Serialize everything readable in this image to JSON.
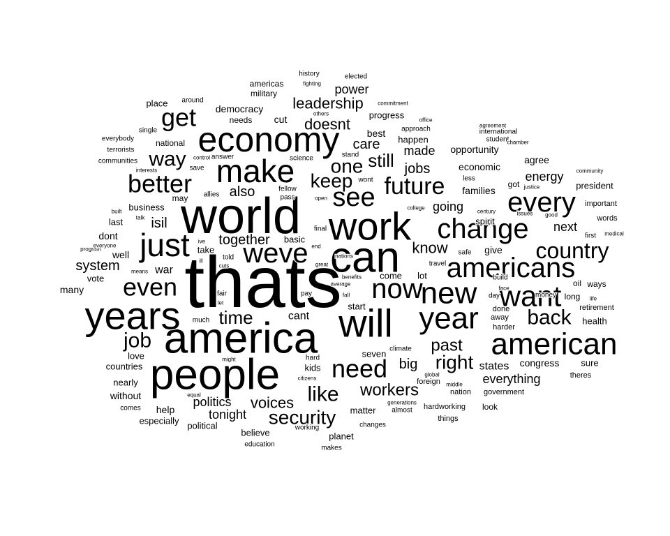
{
  "text_color": "#000000",
  "background_color": "#ffffff",
  "words": [
    {
      "text": "thats",
      "size": 5
    },
    {
      "text": "world",
      "size": 5
    },
    {
      "text": "america",
      "size": 5
    },
    {
      "text": "people",
      "size": 5
    },
    {
      "text": "can",
      "size": 4
    },
    {
      "text": "work",
      "size": 4
    },
    {
      "text": "will",
      "size": 4
    },
    {
      "text": "years",
      "size": 4
    },
    {
      "text": "economy",
      "size": 4
    },
    {
      "text": "make",
      "size": 4
    },
    {
      "text": "just",
      "size": 4
    },
    {
      "text": "weve",
      "size": 4
    },
    {
      "text": "year",
      "size": 4
    },
    {
      "text": "american",
      "size": 4
    },
    {
      "text": "new",
      "size": 4
    },
    {
      "text": "change",
      "size": 4
    },
    {
      "text": "americans",
      "size": 4
    },
    {
      "text": "want",
      "size": 4
    },
    {
      "text": "every",
      "size": 4
    },
    {
      "text": "now",
      "size": 4
    },
    {
      "text": "see",
      "size": 3
    },
    {
      "text": "need",
      "size": 3
    },
    {
      "text": "even",
      "size": 3
    },
    {
      "text": "better",
      "size": 3
    },
    {
      "text": "get",
      "size": 3
    },
    {
      "text": "future",
      "size": 3
    },
    {
      "text": "country",
      "size": 3
    },
    {
      "text": "back",
      "size": 3
    },
    {
      "text": "like",
      "size": 3
    },
    {
      "text": "security",
      "size": 3
    },
    {
      "text": "job",
      "size": 3
    },
    {
      "text": "way",
      "size": 3
    },
    {
      "text": "right",
      "size": 3
    },
    {
      "text": "one",
      "size": 3
    },
    {
      "text": "keep",
      "size": 3
    },
    {
      "text": "still",
      "size": 3
    },
    {
      "text": "time",
      "size": 3
    },
    {
      "text": "past",
      "size": 3
    },
    {
      "text": "workers",
      "size": 3
    },
    {
      "text": "leadership",
      "size": 3
    },
    {
      "text": "doesnt",
      "size": 2
    },
    {
      "text": "voices",
      "size": 2
    },
    {
      "text": "know",
      "size": 2
    },
    {
      "text": "also",
      "size": 2
    },
    {
      "text": "together",
      "size": 2
    },
    {
      "text": "isil",
      "size": 2
    },
    {
      "text": "system",
      "size": 2
    },
    {
      "text": "jobs",
      "size": 2
    },
    {
      "text": "care",
      "size": 2
    },
    {
      "text": "made",
      "size": 2
    },
    {
      "text": "big",
      "size": 2
    },
    {
      "text": "next",
      "size": 2
    },
    {
      "text": "going",
      "size": 2
    },
    {
      "text": "everything",
      "size": 2
    },
    {
      "text": "politics",
      "size": 2
    },
    {
      "text": "power",
      "size": 2
    },
    {
      "text": "energy",
      "size": 2
    },
    {
      "text": "tonight",
      "size": 2
    },
    {
      "text": "cant",
      "size": 2
    },
    {
      "text": "states",
      "size": 2
    },
    {
      "text": "war",
      "size": 2
    },
    {
      "text": "democracy",
      "size": 1
    },
    {
      "text": "give",
      "size": 1
    },
    {
      "text": "families",
      "size": 1
    },
    {
      "text": "opportunity",
      "size": 1
    },
    {
      "text": "economic",
      "size": 1
    },
    {
      "text": "best",
      "size": 1
    },
    {
      "text": "agree",
      "size": 1
    },
    {
      "text": "congress",
      "size": 1
    },
    {
      "text": "president",
      "size": 1
    },
    {
      "text": "help",
      "size": 1
    },
    {
      "text": "well",
      "size": 1
    },
    {
      "text": "dont",
      "size": 1
    },
    {
      "text": "many",
      "size": 1
    },
    {
      "text": "without",
      "size": 1
    },
    {
      "text": "cut",
      "size": 1
    },
    {
      "text": "progress",
      "size": 1
    },
    {
      "text": "happen",
      "size": 1
    },
    {
      "text": "come",
      "size": 1
    },
    {
      "text": "spirit",
      "size": 1
    },
    {
      "text": "seven",
      "size": 1
    },
    {
      "text": "lot",
      "size": 1
    },
    {
      "text": "health",
      "size": 1
    },
    {
      "text": "sure",
      "size": 1
    },
    {
      "text": "political",
      "size": 1
    },
    {
      "text": "especially",
      "size": 1
    },
    {
      "text": "believe",
      "size": 1
    },
    {
      "text": "planet",
      "size": 1
    },
    {
      "text": "matter",
      "size": 1
    },
    {
      "text": "start",
      "size": 1
    },
    {
      "text": "kids",
      "size": 1
    },
    {
      "text": "basic",
      "size": 1
    },
    {
      "text": "business",
      "size": 1
    },
    {
      "text": "last",
      "size": 1
    },
    {
      "text": "countries",
      "size": 1
    },
    {
      "text": "love",
      "size": 1
    },
    {
      "text": "nearly",
      "size": 1
    },
    {
      "text": "vote",
      "size": 1
    },
    {
      "text": "take",
      "size": 1
    },
    {
      "text": "place",
      "size": 1
    },
    {
      "text": "military",
      "size": 1
    },
    {
      "text": "americas",
      "size": 1
    },
    {
      "text": "needs",
      "size": 1
    },
    {
      "text": "national",
      "size": 1
    },
    {
      "text": "may",
      "size": 1
    },
    {
      "text": "got",
      "size": 1
    },
    {
      "text": "long",
      "size": 1
    },
    {
      "text": "oil",
      "size": 1
    },
    {
      "text": "ways",
      "size": 1
    },
    {
      "text": "look",
      "size": 1
    },
    {
      "text": "foreign",
      "size": 1
    },
    {
      "text": "nation",
      "size": 1
    },
    {
      "text": "things",
      "size": 1
    },
    {
      "text": "hardworking",
      "size": 1
    },
    {
      "text": "government",
      "size": 1
    },
    {
      "text": "words",
      "size": 1
    },
    {
      "text": "important",
      "size": 1
    },
    {
      "text": "theres",
      "size": 1
    },
    {
      "text": "away",
      "size": 1
    },
    {
      "text": "done",
      "size": 1
    },
    {
      "text": "harder",
      "size": 1
    },
    {
      "text": "retirement",
      "size": 1
    },
    {
      "text": "everybody",
      "size": 0
    },
    {
      "text": "terrorists",
      "size": 0
    },
    {
      "text": "communities",
      "size": 0
    },
    {
      "text": "history",
      "size": 0
    },
    {
      "text": "elected",
      "size": 0
    },
    {
      "text": "around",
      "size": 0
    },
    {
      "text": "single",
      "size": 0
    },
    {
      "text": "answer",
      "size": 0
    },
    {
      "text": "science",
      "size": 0
    },
    {
      "text": "save",
      "size": 0
    },
    {
      "text": "allies",
      "size": 0
    },
    {
      "text": "fellow",
      "size": 0
    },
    {
      "text": "pass",
      "size": 0
    },
    {
      "text": "wont",
      "size": 0
    },
    {
      "text": "stand",
      "size": 0
    },
    {
      "text": "student",
      "size": 0
    },
    {
      "text": "approach",
      "size": 0
    },
    {
      "text": "international",
      "size": 0
    },
    {
      "text": "less",
      "size": 0
    },
    {
      "text": "day",
      "size": 0
    },
    {
      "text": "money",
      "size": 0
    },
    {
      "text": "first",
      "size": 0
    },
    {
      "text": "told",
      "size": 0
    },
    {
      "text": "much",
      "size": 0
    },
    {
      "text": "pay",
      "size": 0
    },
    {
      "text": "hard",
      "size": 0
    },
    {
      "text": "fair",
      "size": 0
    },
    {
      "text": "final",
      "size": 0
    },
    {
      "text": "education",
      "size": 0
    },
    {
      "text": "makes",
      "size": 0
    },
    {
      "text": "working",
      "size": 0
    },
    {
      "text": "changes",
      "size": 0
    },
    {
      "text": "almost",
      "size": 0
    },
    {
      "text": "comes",
      "size": 0
    },
    {
      "text": "travel",
      "size": 0
    },
    {
      "text": "safe",
      "size": 0
    },
    {
      "text": "climate",
      "size": 0
    },
    {
      "text": "build",
      "size": 0
    },
    {
      "text": "fighting",
      "size": -1
    },
    {
      "text": "commitment",
      "size": -1
    },
    {
      "text": "others",
      "size": -1
    },
    {
      "text": "office",
      "size": -1
    },
    {
      "text": "agreement",
      "size": -1
    },
    {
      "text": "chamber",
      "size": -1
    },
    {
      "text": "control",
      "size": -1
    },
    {
      "text": "interests",
      "size": -1
    },
    {
      "text": "community",
      "size": -1
    },
    {
      "text": "justice",
      "size": -1
    },
    {
      "text": "century",
      "size": -1
    },
    {
      "text": "college",
      "size": -1
    },
    {
      "text": "open",
      "size": -1
    },
    {
      "text": "built",
      "size": -1
    },
    {
      "text": "talk",
      "size": -1
    },
    {
      "text": "program",
      "size": -1
    },
    {
      "text": "everyone",
      "size": -1
    },
    {
      "text": "means",
      "size": -1
    },
    {
      "text": "ive",
      "size": -1
    },
    {
      "text": "ill",
      "size": -1
    },
    {
      "text": "cuts",
      "size": -1
    },
    {
      "text": "great",
      "size": -1
    },
    {
      "text": "end",
      "size": -1
    },
    {
      "text": "nations",
      "size": -1
    },
    {
      "text": "benefits",
      "size": -1
    },
    {
      "text": "average",
      "size": -1
    },
    {
      "text": "let",
      "size": -1
    },
    {
      "text": "fall",
      "size": -1
    },
    {
      "text": "face",
      "size": -1
    },
    {
      "text": "issues",
      "size": -1
    },
    {
      "text": "good",
      "size": -1
    },
    {
      "text": "medical",
      "size": -1
    },
    {
      "text": "life",
      "size": -1
    },
    {
      "text": "might",
      "size": -1
    },
    {
      "text": "equal",
      "size": -1
    },
    {
      "text": "citizens",
      "size": -1
    },
    {
      "text": "global",
      "size": -1
    },
    {
      "text": "middle",
      "size": -1
    },
    {
      "text": "generations",
      "size": -1
    }
  ]
}
